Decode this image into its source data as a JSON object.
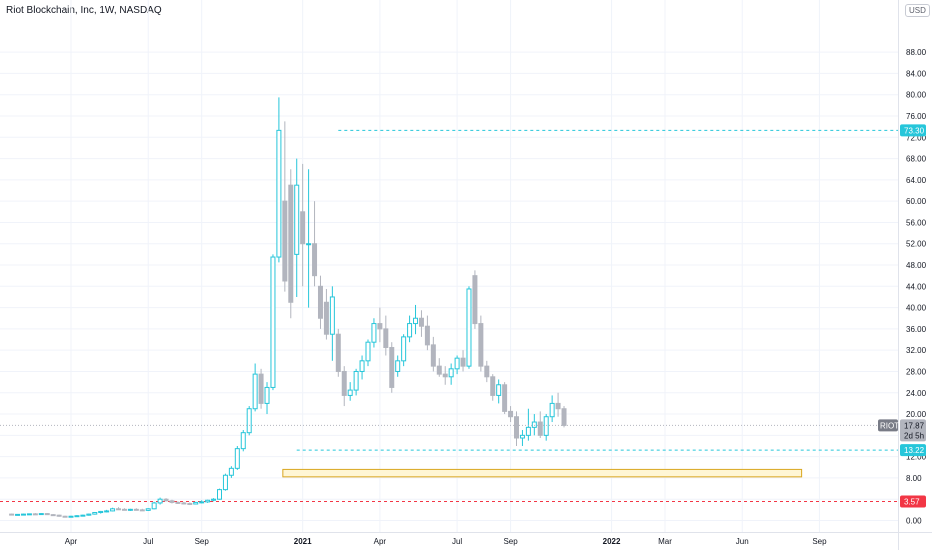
{
  "header": {
    "title": "Riot Blockchain, Inc, 1W, NASDAQ",
    "currency": "USD"
  },
  "colors": {
    "up": "#26c6da",
    "down": "#b2b5be",
    "dotted_up": "#26c6da",
    "dotted_down": "#f23645",
    "zone_fill": "#fff6d5",
    "zone_border": "#d9a61f",
    "grid": "#f0f3fa"
  },
  "chart_data": {
    "type": "candlestick",
    "title": "Riot Blockchain, Inc, 1W, NASDAQ",
    "ylim": [
      -2,
      92
    ],
    "y_ticks": [
      "0.00",
      "4.00",
      "8.00",
      "12.00",
      "16.00",
      "20.00",
      "24.00",
      "28.00",
      "32.00",
      "36.00",
      "40.00",
      "44.00",
      "48.00",
      "52.00",
      "56.00",
      "60.00",
      "64.00",
      "68.00",
      "72.00",
      "76.00",
      "80.00",
      "84.00",
      "88.00"
    ],
    "x_ticks": [
      {
        "label": "Apr",
        "week": 0
      },
      {
        "label": "Jul",
        "week": 13
      },
      {
        "label": "Sep",
        "week": 22
      },
      {
        "label": "2021",
        "week": 39,
        "bold": true
      },
      {
        "label": "Apr",
        "week": 52
      },
      {
        "label": "Jul",
        "week": 65
      },
      {
        "label": "Sep",
        "week": 74
      },
      {
        "label": "2022",
        "week": 91,
        "bold": true
      },
      {
        "label": "Mar",
        "week": 100
      },
      {
        "label": "Jun",
        "week": 113
      },
      {
        "label": "Sep",
        "week": 126
      }
    ],
    "x_range_weeks": [
      -10,
      141
    ],
    "candles": [
      [
        1.2,
        1.3,
        1.0,
        1.1
      ],
      [
        1.1,
        1.2,
        1.0,
        1.15
      ],
      [
        1.15,
        1.3,
        1.05,
        1.2
      ],
      [
        1.2,
        1.3,
        1.1,
        1.25
      ],
      [
        1.25,
        1.4,
        1.15,
        1.2
      ],
      [
        1.2,
        1.35,
        1.1,
        1.3
      ],
      [
        1.3,
        1.4,
        1.2,
        1.1
      ],
      [
        1.1,
        1.2,
        0.9,
        1.0
      ],
      [
        1.0,
        1.1,
        0.7,
        0.8
      ],
      [
        0.8,
        0.9,
        0.6,
        0.7
      ],
      [
        0.7,
        0.9,
        0.6,
        0.8
      ],
      [
        0.8,
        1.0,
        0.7,
        0.9
      ],
      [
        0.9,
        1.1,
        0.8,
        1.0
      ],
      [
        1.0,
        1.3,
        0.9,
        1.2
      ],
      [
        1.2,
        1.6,
        1.1,
        1.5
      ],
      [
        1.5,
        1.8,
        1.3,
        1.7
      ],
      [
        1.7,
        2.0,
        1.5,
        1.8
      ],
      [
        1.8,
        2.4,
        1.7,
        2.2
      ],
      [
        2.2,
        2.5,
        2.0,
        2.1
      ],
      [
        2.1,
        2.3,
        1.9,
        2.0
      ],
      [
        2.0,
        2.2,
        1.8,
        2.1
      ],
      [
        2.1,
        2.3,
        1.9,
        2.0
      ],
      [
        2.0,
        2.2,
        1.8,
        1.9
      ],
      [
        1.9,
        2.3,
        1.8,
        2.2
      ],
      [
        2.2,
        3.5,
        2.1,
        3.3
      ],
      [
        3.3,
        4.3,
        3.0,
        4.0
      ],
      [
        4.0,
        4.2,
        3.6,
        3.7
      ],
      [
        3.7,
        3.9,
        3.2,
        3.4
      ],
      [
        3.4,
        3.6,
        3.1,
        3.3
      ],
      [
        3.3,
        3.5,
        3.0,
        3.2
      ],
      [
        3.2,
        3.4,
        2.9,
        3.1
      ],
      [
        3.1,
        3.5,
        3.0,
        3.4
      ],
      [
        3.4,
        3.8,
        3.2,
        3.5
      ],
      [
        3.5,
        3.9,
        3.3,
        3.8
      ],
      [
        3.8,
        4.2,
        3.6,
        4.0
      ],
      [
        4.0,
        6.0,
        3.9,
        5.8
      ],
      [
        5.8,
        8.8,
        5.6,
        8.5
      ],
      [
        8.5,
        10.2,
        8.0,
        9.8
      ],
      [
        9.8,
        14.0,
        9.5,
        13.5
      ],
      [
        13.5,
        17.0,
        13.0,
        16.5
      ],
      [
        16.5,
        21.5,
        16.0,
        21.0
      ],
      [
        21.0,
        29.5,
        20.5,
        27.5
      ],
      [
        27.5,
        28.5,
        21.0,
        22.0
      ],
      [
        22.0,
        26.0,
        20.0,
        25.0
      ],
      [
        25.0,
        50.0,
        24.5,
        49.5
      ],
      [
        49.5,
        79.5,
        48.5,
        73.3
      ],
      [
        60.0,
        75.0,
        43.0,
        45.0
      ],
      [
        63.0,
        66.0,
        38.0,
        41.0
      ],
      [
        50.0,
        68.0,
        42.0,
        63.0
      ],
      [
        58.0,
        67.0,
        44.0,
        52.0
      ],
      [
        52.0,
        66.0,
        40.0,
        52.0
      ],
      [
        52.0,
        60.0,
        44.0,
        46.0
      ],
      [
        44.0,
        46.0,
        36.0,
        38.0
      ],
      [
        41.0,
        43.5,
        34.0,
        35.0
      ],
      [
        35.0,
        44.0,
        30.0,
        42.0
      ],
      [
        35.0,
        36.0,
        27.0,
        28.0
      ],
      [
        28.0,
        29.0,
        21.5,
        23.5
      ],
      [
        23.5,
        26.0,
        22.5,
        24.5
      ],
      [
        24.5,
        28.5,
        23.5,
        28.0
      ],
      [
        28.0,
        31.0,
        26.5,
        30.0
      ],
      [
        30.0,
        34.0,
        29.0,
        33.5
      ],
      [
        33.5,
        38.0,
        32.5,
        37.0
      ],
      [
        37.0,
        40.0,
        33.5,
        36.0
      ],
      [
        36.0,
        38.5,
        31.0,
        32.5
      ],
      [
        32.5,
        33.5,
        24.0,
        25.0
      ],
      [
        28.0,
        31.0,
        27.0,
        30.0
      ],
      [
        30.0,
        35.0,
        29.0,
        34.5
      ],
      [
        34.5,
        38.5,
        33.5,
        37.0
      ],
      [
        37.0,
        40.5,
        35.0,
        38.0
      ],
      [
        38.0,
        39.5,
        34.5,
        36.5
      ],
      [
        36.5,
        38.5,
        32.0,
        33.0
      ],
      [
        33.0,
        34.5,
        28.0,
        29.0
      ],
      [
        29.0,
        30.5,
        27.0,
        27.5
      ],
      [
        27.5,
        29.0,
        25.5,
        27.0
      ],
      [
        27.0,
        29.5,
        25.5,
        28.5
      ],
      [
        28.5,
        31.0,
        27.5,
        30.5
      ],
      [
        30.5,
        32.0,
        28.0,
        29.0
      ],
      [
        29.0,
        44.0,
        28.5,
        43.5
      ],
      [
        46.0,
        47.0,
        36.0,
        37.0
      ],
      [
        37.0,
        38.5,
        28.0,
        29.0
      ],
      [
        29.0,
        30.0,
        26.0,
        27.0
      ],
      [
        27.0,
        27.5,
        22.5,
        23.5
      ],
      [
        23.5,
        26.5,
        22.0,
        25.5
      ],
      [
        25.5,
        26.0,
        20.0,
        20.5
      ],
      [
        20.5,
        21.5,
        18.5,
        19.5
      ],
      [
        19.5,
        20.5,
        14.0,
        15.5
      ],
      [
        15.5,
        17.0,
        14.0,
        16.0
      ],
      [
        16.0,
        21.0,
        15.0,
        17.5
      ],
      [
        17.5,
        20.0,
        16.0,
        18.5
      ],
      [
        18.5,
        20.5,
        15.5,
        16.0
      ],
      [
        16.0,
        20.0,
        15.0,
        19.5
      ],
      [
        19.5,
        23.5,
        18.5,
        22.0
      ],
      [
        22.0,
        24.0,
        19.5,
        21.0
      ],
      [
        21.0,
        21.5,
        17.5,
        17.87
      ]
    ],
    "horizontal_lines": [
      {
        "value": 73.3,
        "label": "73.30",
        "style": "dotted",
        "color": "#26c6da"
      },
      {
        "value": 13.22,
        "label": "13.22",
        "style": "dotted",
        "color": "#26c6da"
      },
      {
        "value": 3.57,
        "label": "3.57",
        "style": "dotted",
        "color": "#f23645"
      }
    ],
    "zone": {
      "top": 9.6,
      "bottom": 8.2,
      "start_week": 36,
      "end_week": 123
    },
    "last_price": {
      "symbol": "RIOT",
      "value": "17.87",
      "countdown": "2d 5h"
    }
  }
}
